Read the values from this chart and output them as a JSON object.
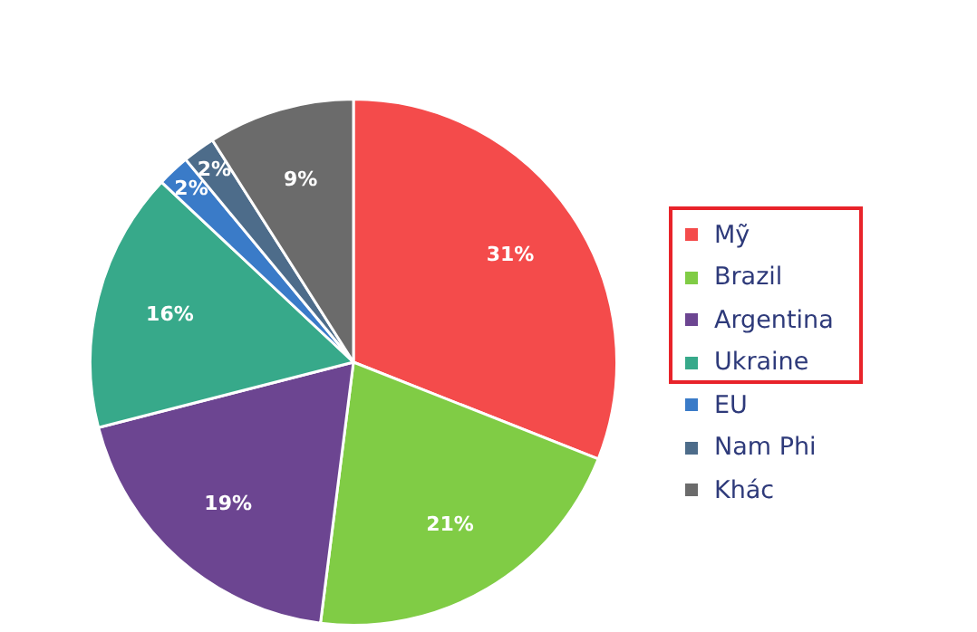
{
  "chart_data": {
    "type": "pie",
    "categories": [
      "Mỹ",
      "Brazil",
      "Argentina",
      "Ukraine",
      "EU",
      "Nam Phi",
      "Khác"
    ],
    "values": [
      31,
      21,
      19,
      16,
      2,
      2,
      9
    ],
    "colors": [
      "#f44b4b",
      "#80cc45",
      "#6c4591",
      "#37a98a",
      "#3a7bc8",
      "#4d6c8a",
      "#6b6b6b"
    ],
    "value_labels": [
      "31%",
      "21%",
      "19%",
      "16%",
      "2%",
      "2%",
      "9%"
    ],
    "legend": "right"
  }
}
